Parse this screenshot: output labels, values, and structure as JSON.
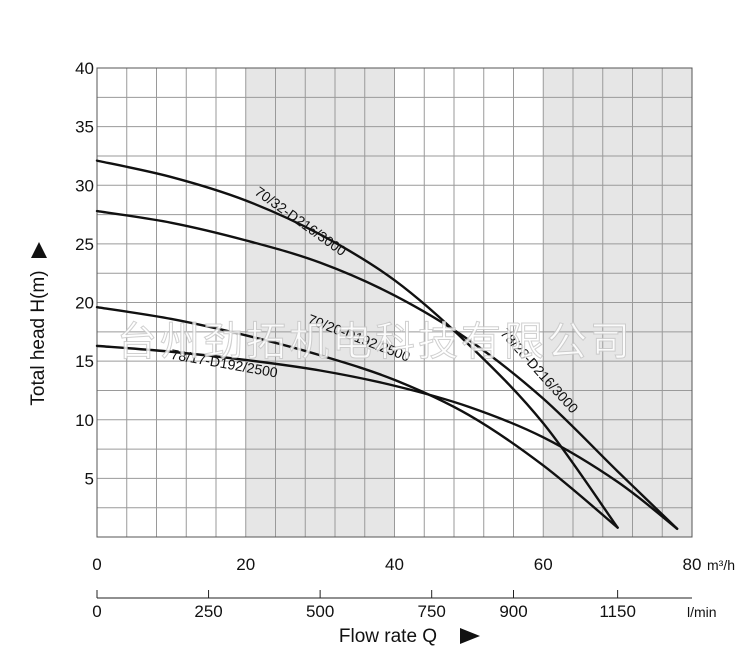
{
  "watermark": "台州劲拓机电科技有限公司",
  "chart_data": {
    "type": "line",
    "xlabel": "Flow rate Q",
    "ylabel": "Total head H(m)",
    "x_unit": "m³/h",
    "x2_unit": "l/min",
    "xlim": [
      0,
      80
    ],
    "ylim": [
      0,
      40
    ],
    "x_ticks": [
      0,
      20,
      40,
      60,
      80
    ],
    "y_ticks": [
      5,
      10,
      15,
      20,
      25,
      30,
      35,
      40
    ],
    "x2_ticks": [
      {
        "label": "0",
        "value": 0
      },
      {
        "label": "250",
        "value": 15
      },
      {
        "label": "500",
        "value": 30
      },
      {
        "label": "750",
        "value": 45
      },
      {
        "label": "900",
        "value": 56
      },
      {
        "label": "1150",
        "value": 70
      }
    ],
    "grid": true,
    "shaded_x_ranges": [
      [
        20,
        40
      ],
      [
        60,
        80
      ]
    ],
    "series": [
      {
        "name": "70/32-D216/3000",
        "x": [
          0,
          10,
          20,
          30,
          40,
          50,
          60,
          70
        ],
        "y": [
          32.1,
          30.7,
          28.7,
          25.8,
          21.9,
          16.4,
          9.7,
          0.8
        ]
      },
      {
        "name": "78/28-D216/3000",
        "x": [
          0,
          10,
          20,
          30,
          40,
          50,
          60,
          70,
          78
        ],
        "y": [
          27.8,
          26.8,
          25.3,
          23.4,
          20.6,
          16.8,
          11.8,
          5.6,
          0.7
        ]
      },
      {
        "name": "70/20-D192/2500",
        "x": [
          0,
          10,
          20,
          30,
          40,
          50,
          60,
          70
        ],
        "y": [
          19.6,
          18.6,
          17.2,
          15.5,
          13.4,
          10.4,
          6.1,
          0.8
        ]
      },
      {
        "name": "78/17-D192/2500",
        "x": [
          0,
          10,
          20,
          30,
          40,
          50,
          60,
          70,
          78
        ],
        "y": [
          16.3,
          15.8,
          15.1,
          14.2,
          12.9,
          11.1,
          8.5,
          4.7,
          0.7
        ]
      }
    ]
  }
}
